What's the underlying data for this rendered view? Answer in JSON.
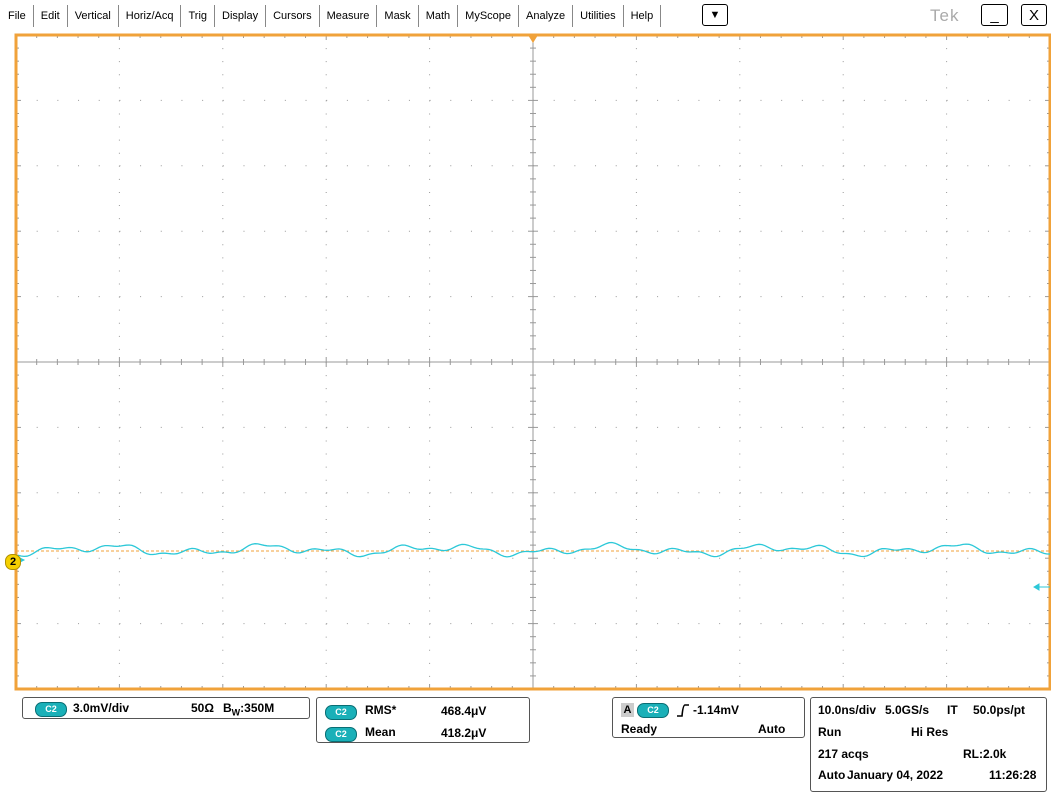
{
  "menu": [
    "File",
    "Edit",
    "Vertical",
    "Horiz/Acq",
    "Trig",
    "Display",
    "Cursors",
    "Measure",
    "Mask",
    "Math",
    "MyScope",
    "Analyze",
    "Utilities",
    "Help"
  ],
  "dropdown": "▼",
  "tek_logo": "Tek",
  "window_buttons": [
    "_",
    "X"
  ],
  "channel_marker": "2",
  "vertical": {
    "channel": "C2",
    "scale": "3.0mV/div",
    "termination": "50Ω",
    "bw_letter": "B",
    "bw_sub": "W",
    "bw_value": ":350M"
  },
  "measurements": [
    {
      "channel": "C2",
      "name": "RMS*",
      "value": "468.4μV"
    },
    {
      "channel": "C2",
      "name": "Mean",
      "value": "418.2μV"
    }
  ],
  "trigger": {
    "source_label": "A",
    "channel": "C2",
    "level": "-1.14mV",
    "state": "Ready",
    "mode": "Auto"
  },
  "acquisition": {
    "rows": [
      [
        "10.0ns/div",
        "5.0GS/s",
        "IT",
        "50.0ps/pt"
      ],
      [
        "Run",
        "Hi Res"
      ],
      [
        "217 acqs",
        "RL:2.0k"
      ],
      [
        "Auto",
        "January 04, 2022",
        "11:26:28"
      ]
    ]
  }
}
